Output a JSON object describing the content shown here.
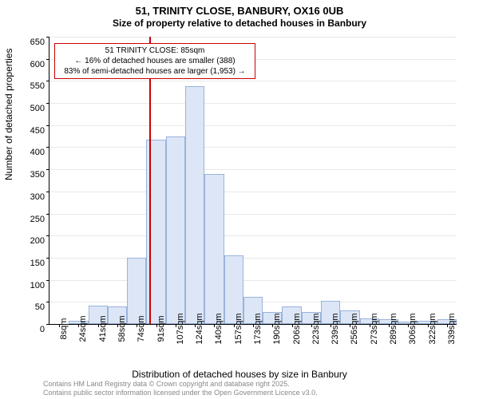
{
  "title_main": "51, TRINITY CLOSE, BANBURY, OX16 0UB",
  "title_sub": "Size of property relative to detached houses in Banbury",
  "y_axis_label": "Number of detached properties",
  "x_axis_label": "Distribution of detached houses by size in Banbury",
  "footer_line1": "Contains HM Land Registry data © Crown copyright and database right 2025.",
  "footer_line2": "Contains public sector information licensed under the Open Government Licence v3.0.",
  "chart": {
    "type": "histogram",
    "ylim": [
      0,
      650
    ],
    "ytick_step": 50,
    "bar_color": "#dce6f6",
    "bar_border_color": "#9ab3db",
    "background_color": "#ffffff",
    "grid_color": "#e8e8e8",
    "marker_color": "#cc0000",
    "marker_value": 85,
    "x_categories": [
      "8sqm",
      "24sqm",
      "41sqm",
      "58sqm",
      "74sqm",
      "91sqm",
      "107sqm",
      "124sqm",
      "140sqm",
      "157sqm",
      "173sqm",
      "190sqm",
      "206sqm",
      "223sqm",
      "239sqm",
      "256sqm",
      "273sqm",
      "289sqm",
      "306sqm",
      "322sqm",
      "339sqm"
    ],
    "values": [
      0,
      8,
      42,
      40,
      150,
      418,
      425,
      538,
      340,
      155,
      62,
      28,
      40,
      28,
      52,
      30,
      12,
      10,
      5,
      8,
      10
    ],
    "annotation": {
      "line1": "51 TRINITY CLOSE: 85sqm",
      "line2": "← 16% of detached houses are smaller (388)",
      "line3": "83% of semi-detached houses are larger (1,953) →"
    }
  }
}
